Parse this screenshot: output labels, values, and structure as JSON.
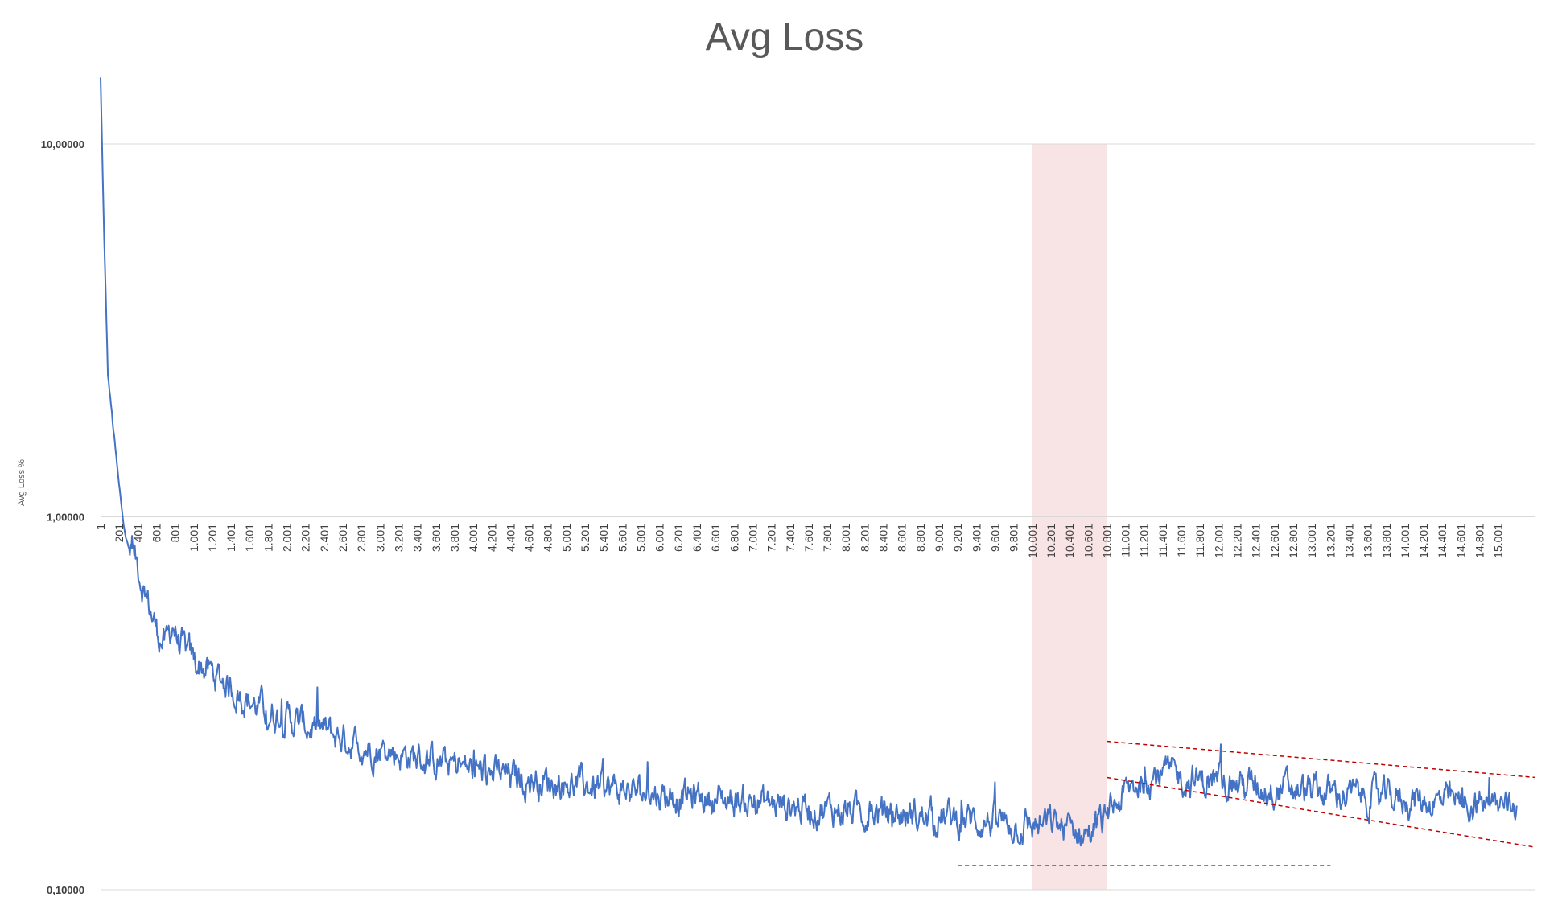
{
  "chart_data": {
    "type": "line",
    "title": "Avg Loss",
    "xlabel": "",
    "ylabel": "Avg Loss %",
    "y_scale": "log",
    "ylim": [
      0.1,
      10
    ],
    "y_ticks": [
      "10,00000",
      "1,00000",
      "0,10000"
    ],
    "y_tick_values": [
      10,
      1,
      0.1
    ],
    "grid": "horizontal major gridlines",
    "x_tick_labels": [
      "1",
      "201",
      "401",
      "601",
      "801",
      "1.001",
      "1.201",
      "1.401",
      "1.601",
      "1.801",
      "2.001",
      "2.201",
      "2.401",
      "2.601",
      "2.801",
      "3.001",
      "3.201",
      "3.401",
      "3.601",
      "3.801",
      "4.001",
      "4.201",
      "4.401",
      "4.601",
      "4.801",
      "5.001",
      "5.201",
      "5.401",
      "5.601",
      "5.801",
      "6.001",
      "6.201",
      "6.401",
      "6.601",
      "6.801",
      "7.001",
      "7.201",
      "7.401",
      "7.601",
      "7.801",
      "8.001",
      "8.201",
      "8.401",
      "8.601",
      "8.801",
      "9.001",
      "9.201",
      "9.401",
      "9.601",
      "9.801",
      "10.001",
      "10.201",
      "10.401",
      "10.601",
      "10.801",
      "11.001",
      "11.201",
      "11.401",
      "11.601",
      "11.801",
      "12.001",
      "12.201",
      "12.401",
      "12.601",
      "12.801",
      "13.001",
      "13.201",
      "13.401",
      "13.601",
      "13.801",
      "14.001",
      "14.201",
      "14.401",
      "14.601",
      "14.801",
      "15.001"
    ],
    "x_tick_values": [
      1,
      201,
      401,
      601,
      801,
      1001,
      1201,
      1401,
      1601,
      1801,
      2001,
      2201,
      2401,
      2601,
      2801,
      3001,
      3201,
      3401,
      3601,
      3801,
      4001,
      4201,
      4401,
      4601,
      4801,
      5001,
      5201,
      5401,
      5601,
      5801,
      6001,
      6201,
      6401,
      6601,
      6801,
      7001,
      7201,
      7401,
      7601,
      7801,
      8001,
      8201,
      8401,
      8601,
      8801,
      9001,
      9201,
      9401,
      9601,
      9801,
      10001,
      10201,
      10401,
      10601,
      10801,
      11001,
      11201,
      11401,
      11601,
      11801,
      12001,
      12201,
      12401,
      12601,
      12801,
      13001,
      13201,
      13401,
      13601,
      13801,
      14001,
      14201,
      14401,
      14601,
      14801,
      15001
    ],
    "xlim": [
      1,
      15401
    ],
    "series": [
      {
        "color": "#4472C4",
        "x": [
          1,
          40,
          80,
          130,
          200,
          250,
          300,
          400,
          500,
          600,
          700,
          780,
          850,
          1000,
          1200,
          1400,
          1600,
          1800,
          2000,
          2200,
          2400,
          2600,
          2800,
          3000,
          3200,
          3400,
          3600,
          3800,
          4000,
          4400,
          4800,
          5200,
          5600,
          6000,
          6400,
          6800,
          7200,
          7600,
          8000,
          8400,
          8800,
          9200,
          9600,
          9800,
          10000,
          10200,
          10400,
          10600,
          10800,
          10900,
          11000,
          11200,
          11400,
          11600,
          11800,
          12000,
          12400,
          12800,
          13200,
          13600,
          14000,
          14400,
          14800,
          15200
        ],
        "y": [
          15,
          5.5,
          2.4,
          1.8,
          1.2,
          0.95,
          0.82,
          0.74,
          0.6,
          0.5,
          0.45,
          0.52,
          0.45,
          0.41,
          0.38,
          0.35,
          0.32,
          0.3,
          0.29,
          0.275,
          0.265,
          0.255,
          0.245,
          0.238,
          0.232,
          0.226,
          0.22,
          0.215,
          0.21,
          0.2,
          0.195,
          0.19,
          0.185,
          0.18,
          0.177,
          0.174,
          0.17,
          0.166,
          0.163,
          0.16,
          0.157,
          0.155,
          0.152,
          0.15,
          0.148,
          0.15,
          0.145,
          0.142,
          0.155,
          0.17,
          0.18,
          0.2,
          0.205,
          0.2,
          0.195,
          0.195,
          0.19,
          0.185,
          0.182,
          0.178,
          0.175,
          0.172,
          0.17,
          0.168
        ]
      }
    ],
    "annotations": [
      {
        "type": "shaded-band",
        "x_range": [
          10001,
          10801
        ],
        "y_range": [
          0.1,
          10
        ],
        "color": "#F8E4E4"
      },
      {
        "type": "dashed-line",
        "color": "#C00000",
        "x": [
          9201,
          13201
        ],
        "y": [
          0.116,
          0.116
        ]
      },
      {
        "type": "dashed-line",
        "color": "#C00000",
        "x": [
          10801,
          15401
        ],
        "y": [
          0.25,
          0.2
        ]
      },
      {
        "type": "dashed-line",
        "color": "#C00000",
        "x": [
          10801,
          15401
        ],
        "y": [
          0.2,
          0.13
        ]
      }
    ]
  }
}
